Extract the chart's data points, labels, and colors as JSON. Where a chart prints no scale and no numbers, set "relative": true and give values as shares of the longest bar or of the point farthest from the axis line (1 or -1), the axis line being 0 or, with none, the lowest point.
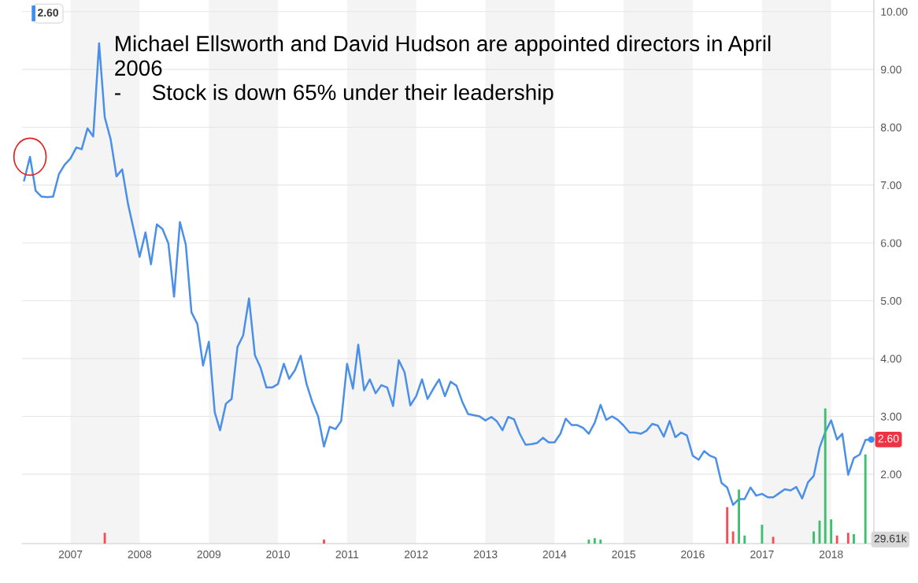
{
  "chart_data": [
    {
      "type": "line",
      "x": [
        "2006-05",
        "2006-06",
        "2006-07",
        "2006-08",
        "2006-09",
        "2006-10",
        "2006-11",
        "2006-12",
        "2007-01",
        "2007-02",
        "2007-03",
        "2007-04",
        "2007-05",
        "2007-06",
        "2007-07",
        "2007-08",
        "2007-09",
        "2007-10",
        "2007-11",
        "2007-12",
        "2008-01",
        "2008-02",
        "2008-03",
        "2008-04",
        "2008-05",
        "2008-06",
        "2008-07",
        "2008-08",
        "2008-09",
        "2008-10",
        "2008-11",
        "2008-12",
        "2009-01",
        "2009-02",
        "2009-03",
        "2009-04",
        "2009-05",
        "2009-06",
        "2009-07",
        "2009-08",
        "2009-09",
        "2009-10",
        "2009-11",
        "2009-12",
        "2010-01",
        "2010-02",
        "2010-03",
        "2010-04",
        "2010-05",
        "2010-06",
        "2010-07",
        "2010-08",
        "2010-09",
        "2010-10",
        "2010-11",
        "2010-12",
        "2011-01",
        "2011-02",
        "2011-03",
        "2011-04",
        "2011-05",
        "2011-06",
        "2011-07",
        "2011-08",
        "2011-09",
        "2011-10",
        "2011-11",
        "2011-12",
        "2012-01",
        "2012-02",
        "2012-03",
        "2012-04",
        "2012-05",
        "2012-06",
        "2012-07",
        "2012-08",
        "2012-09",
        "2012-10",
        "2012-11",
        "2012-12",
        "2013-01",
        "2013-02",
        "2013-03",
        "2013-04",
        "2013-05",
        "2013-06",
        "2013-07",
        "2013-08",
        "2013-09",
        "2013-10",
        "2013-11",
        "2013-12",
        "2014-01",
        "2014-02",
        "2014-03",
        "2014-04",
        "2014-05",
        "2014-06",
        "2014-07",
        "2014-08",
        "2014-09",
        "2014-10",
        "2014-11",
        "2014-12",
        "2015-01",
        "2015-02",
        "2015-03",
        "2015-04",
        "2015-05",
        "2015-06",
        "2015-07",
        "2015-08",
        "2015-09",
        "2015-10",
        "2015-11",
        "2015-12",
        "2016-01",
        "2016-02",
        "2016-03",
        "2016-04",
        "2016-05",
        "2016-06",
        "2016-07",
        "2016-08",
        "2016-09",
        "2016-10",
        "2016-11",
        "2016-12",
        "2017-01",
        "2017-02",
        "2017-03",
        "2017-04",
        "2017-05",
        "2017-06",
        "2017-07",
        "2017-08",
        "2017-09",
        "2017-10",
        "2017-11",
        "2017-12",
        "2018-01",
        "2018-02",
        "2018-03",
        "2018-04",
        "2018-05",
        "2018-06",
        "2018-07",
        "2018-08"
      ],
      "series": [
        {
          "color": "#4a8fe8",
          "values": [
            7.08,
            7.49,
            6.9,
            6.8,
            6.79,
            6.8,
            7.19,
            7.35,
            7.46,
            7.65,
            7.62,
            7.98,
            7.84,
            9.45,
            8.17,
            7.79,
            7.15,
            7.27,
            6.67,
            6.23,
            5.76,
            6.18,
            5.63,
            6.32,
            6.24,
            5.99,
            5.07,
            6.36,
            5.97,
            4.8,
            4.6,
            3.88,
            4.29,
            3.07,
            2.76,
            3.22,
            3.3,
            4.2,
            4.4,
            5.04,
            4.06,
            3.84,
            3.5,
            3.5,
            3.56,
            3.91,
            3.65,
            3.8,
            4.05,
            3.56,
            3.25,
            3.0,
            2.48,
            2.82,
            2.78,
            2.92,
            3.91,
            3.48,
            4.24,
            3.45,
            3.64,
            3.4,
            3.54,
            3.5,
            3.18,
            3.97,
            3.76,
            3.19,
            3.35,
            3.64,
            3.3,
            3.48,
            3.64,
            3.35,
            3.6,
            3.53,
            3.25,
            3.04,
            3.02,
            3.0,
            2.93,
            2.99,
            2.92,
            2.76,
            2.99,
            2.95,
            2.7,
            2.51,
            2.52,
            2.54,
            2.63,
            2.55,
            2.55,
            2.7,
            2.96,
            2.85,
            2.85,
            2.8,
            2.7,
            2.89,
            3.2,
            2.94,
            3.0,
            2.94,
            2.84,
            2.72,
            2.72,
            2.7,
            2.75,
            2.87,
            2.84,
            2.65,
            2.92,
            2.64,
            2.72,
            2.67,
            2.32,
            2.25,
            2.4,
            2.32,
            2.28,
            1.85,
            1.77,
            1.47,
            1.57,
            1.57,
            1.77,
            1.63,
            1.66,
            1.6,
            1.6,
            1.67,
            1.74,
            1.72,
            1.78,
            1.58,
            1.86,
            1.97,
            2.46,
            2.73,
            2.93,
            2.6,
            2.7,
            1.99,
            2.28,
            2.34,
            2.59,
            2.6
          ]
        }
      ],
      "xlim": [
        "2006-04-20",
        "2018-08-15"
      ],
      "xticks": [
        "2007",
        "2008",
        "2009",
        "2010",
        "2011",
        "2012",
        "2013",
        "2014",
        "2015",
        "2016",
        "2017",
        "2018"
      ],
      "ylim": [
        0.8,
        10.2
      ],
      "yticks": [
        {
          "value": 2,
          "label": "2.00"
        },
        {
          "value": 3,
          "label": "3.00"
        },
        {
          "value": 4,
          "label": "4.00"
        },
        {
          "value": 5,
          "label": "5.00"
        },
        {
          "value": 6,
          "label": "6.00"
        },
        {
          "value": 7,
          "label": "7.00"
        },
        {
          "value": 8,
          "label": "8.00"
        },
        {
          "value": 9,
          "label": "9.00"
        },
        {
          "value": 10,
          "label": "10.00"
        }
      ],
      "tick_labels": "y",
      "grid": "y",
      "legend": false,
      "bands": [
        {
          "axis": "x",
          "from": "2007",
          "to": "2008",
          "color": "#f4f4f4"
        },
        {
          "axis": "x",
          "from": "2009",
          "to": "2010",
          "color": "#f4f4f4"
        },
        {
          "axis": "x",
          "from": "2011",
          "to": "2012",
          "color": "#f4f4f4"
        },
        {
          "axis": "x",
          "from": "2013",
          "to": "2014",
          "color": "#f4f4f4"
        },
        {
          "axis": "x",
          "from": "2015",
          "to": "2016",
          "color": "#f4f4f4"
        },
        {
          "axis": "x",
          "from": "2017",
          "to": "2018",
          "color": "#f4f4f4"
        }
      ],
      "annotations": [
        "2.60",
        "Michael Ellsworth and David Hudson are appointed directors in April\n2006\n-     Stock is down 65% under their leadership",
        {
          "text": "2.60",
          "x": "2018-08",
          "y": 2.6
        }
      ]
    },
    {
      "type": "bar",
      "relative": true,
      "x": [
        "2007-07",
        "2010-09",
        "2014-07",
        "2014-08",
        "2014-09",
        "2016-07",
        "2016-08",
        "2016-09",
        "2016-10",
        "2017-01",
        "2017-03",
        "2017-10",
        "2017-11",
        "2017-12",
        "2018-01",
        "2018-02",
        "2018-04",
        "2018-05",
        "2018-07"
      ],
      "values": [
        0.08,
        0.03,
        0.03,
        0.04,
        0.03,
        0.27,
        0.09,
        0.4,
        0.06,
        0.14,
        0.05,
        0.09,
        0.17,
        1.0,
        0.18,
        0.06,
        0.08,
        0.07,
        0.66
      ],
      "colors": [
        "#f0505a",
        "#f0505a",
        "#3cc070",
        "#3cc070",
        "#3cc070",
        "#f0505a",
        "#f0505a",
        "#3cc070",
        "#3cc070",
        "#3cc070",
        "#f0505a",
        "#3cc070",
        "#3cc070",
        "#3cc070",
        "#3cc070",
        "#f0505a",
        "#f0505a",
        "#3cc070",
        "#3cc070"
      ],
      "xlim": [
        "2006-04-20",
        "2018-08-15"
      ],
      "xticks": [
        "2007",
        "2008",
        "2009",
        "2010",
        "2011",
        "2012",
        "2013",
        "2014",
        "2015",
        "2016",
        "2017",
        "2018"
      ],
      "tick_labels": "x",
      "annotations": [
        "29.61k"
      ]
    }
  ]
}
